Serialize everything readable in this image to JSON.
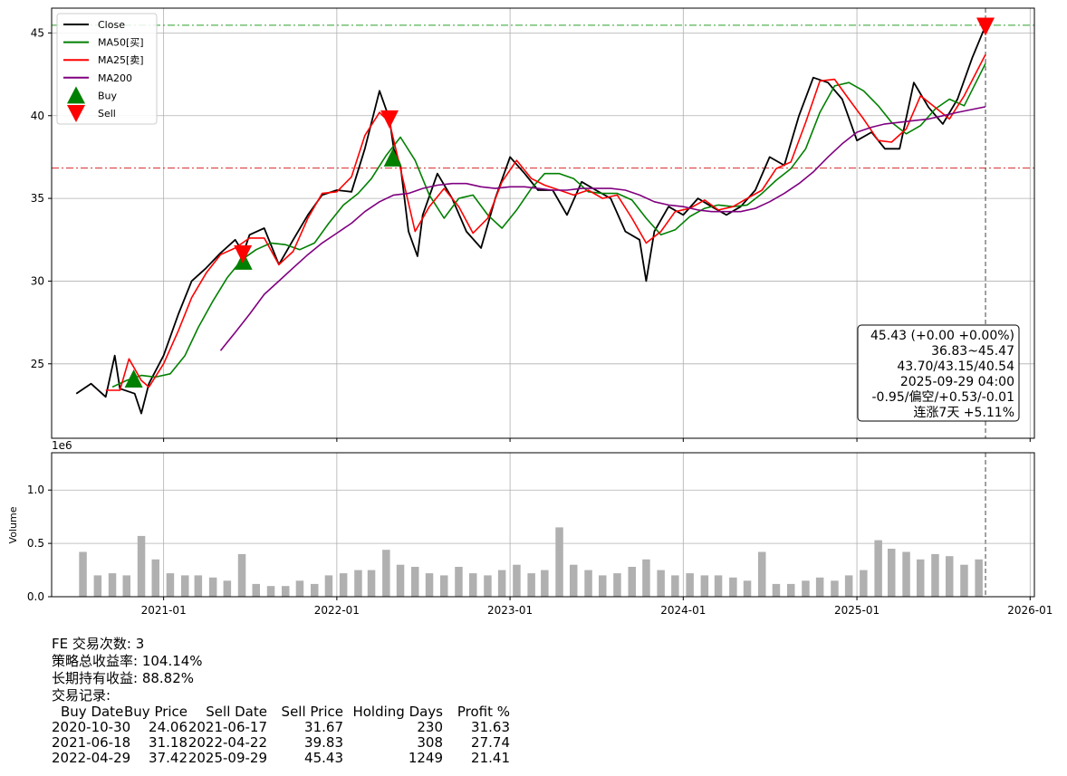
{
  "chart_data": [
    {
      "type": "line",
      "title": "",
      "xlabel": "",
      "ylabel": "",
      "ylim": [
        20.5,
        46.5
      ],
      "yticks": [
        "25",
        "30",
        "35",
        "40",
        "45"
      ],
      "xticks": [
        "2021-01",
        "2022-01",
        "2023-01",
        "2024-01",
        "2025-01",
        "2026-01"
      ],
      "grid": true,
      "legend_position": "top-left",
      "series": [
        {
          "name": "Close",
          "color": "#000000",
          "x": [
            "2020-07-01",
            "2020-08-01",
            "2020-09-01",
            "2020-09-20",
            "2020-10-01",
            "2020-11-01",
            "2020-11-15",
            "2020-12-01",
            "2021-01-01",
            "2021-02-01",
            "2021-03-01",
            "2021-04-01",
            "2021-05-01",
            "2021-06-01",
            "2021-06-18",
            "2021-07-01",
            "2021-08-01",
            "2021-09-01",
            "2021-10-01",
            "2021-11-01",
            "2021-12-01",
            "2022-01-01",
            "2022-02-01",
            "2022-03-01",
            "2022-04-01",
            "2022-04-22",
            "2022-05-01",
            "2022-05-15",
            "2022-06-01",
            "2022-06-20",
            "2022-07-01",
            "2022-08-01",
            "2022-09-01",
            "2022-10-01",
            "2022-11-01",
            "2022-12-01",
            "2023-01-01",
            "2023-02-01",
            "2023-03-01",
            "2023-04-01",
            "2023-05-01",
            "2023-06-01",
            "2023-07-01",
            "2023-08-01",
            "2023-09-01",
            "2023-10-01",
            "2023-10-15",
            "2023-11-01",
            "2023-12-01",
            "2024-01-01",
            "2024-02-01",
            "2024-03-01",
            "2024-04-01",
            "2024-05-01",
            "2024-06-01",
            "2024-07-01",
            "2024-08-01",
            "2024-09-01",
            "2024-10-01",
            "2024-11-01",
            "2024-12-01",
            "2025-01-01",
            "2025-02-01",
            "2025-03-01",
            "2025-04-01",
            "2025-05-01",
            "2025-06-01",
            "2025-07-01",
            "2025-08-01",
            "2025-09-01",
            "2025-09-29"
          ],
          "values": [
            23.2,
            23.8,
            23.0,
            25.5,
            23.5,
            23.2,
            22.0,
            23.8,
            25.5,
            28.0,
            30.0,
            30.8,
            31.7,
            32.5,
            31.7,
            32.8,
            33.2,
            31.0,
            32.5,
            34.0,
            35.2,
            35.5,
            35.4,
            38.0,
            41.5,
            39.8,
            38.0,
            37.0,
            33.0,
            31.5,
            34.0,
            36.5,
            35.0,
            33.0,
            32.0,
            35.0,
            37.5,
            36.5,
            35.5,
            35.5,
            34.0,
            36.0,
            35.5,
            35.0,
            33.0,
            32.5,
            30.0,
            33.0,
            34.5,
            34.0,
            35.0,
            34.5,
            34.0,
            34.5,
            35.5,
            37.5,
            37.0,
            40.0,
            42.3,
            42.0,
            41.0,
            38.5,
            39.0,
            38.0,
            38.0,
            42.0,
            40.5,
            39.5,
            41.0,
            43.5,
            45.43
          ]
        },
        {
          "name": "MA50[买]",
          "color": "#008000",
          "x": [
            "2020-09-15",
            "2020-10-15",
            "2020-11-15",
            "2020-12-15",
            "2021-01-15",
            "2021-02-15",
            "2021-03-15",
            "2021-04-15",
            "2021-05-15",
            "2021-06-15",
            "2021-07-15",
            "2021-08-15",
            "2021-09-15",
            "2021-10-15",
            "2021-11-15",
            "2021-12-15",
            "2022-01-15",
            "2022-02-15",
            "2022-03-15",
            "2022-04-15",
            "2022-05-15",
            "2022-06-15",
            "2022-07-15",
            "2022-08-15",
            "2022-09-15",
            "2022-10-15",
            "2022-11-15",
            "2022-12-15",
            "2023-01-15",
            "2023-02-15",
            "2023-03-15",
            "2023-04-15",
            "2023-05-15",
            "2023-06-15",
            "2023-07-15",
            "2023-08-15",
            "2023-09-15",
            "2023-10-15",
            "2023-11-15",
            "2023-12-15",
            "2024-01-15",
            "2024-02-15",
            "2024-03-15",
            "2024-04-15",
            "2024-05-15",
            "2024-06-15",
            "2024-07-15",
            "2024-08-15",
            "2024-09-15",
            "2024-10-15",
            "2024-11-15",
            "2024-12-15",
            "2025-01-15",
            "2025-02-15",
            "2025-03-15",
            "2025-04-15",
            "2025-05-15",
            "2025-06-15",
            "2025-07-15",
            "2025-08-15",
            "2025-09-29"
          ],
          "values": [
            23.6,
            24.0,
            24.3,
            24.2,
            24.4,
            25.5,
            27.2,
            28.8,
            30.2,
            31.3,
            31.9,
            32.3,
            32.2,
            31.9,
            32.3,
            33.5,
            34.6,
            35.3,
            36.2,
            37.6,
            38.7,
            37.3,
            35.2,
            33.8,
            35.0,
            35.2,
            34.0,
            33.2,
            34.3,
            35.6,
            36.5,
            36.5,
            36.2,
            35.4,
            35.3,
            35.3,
            34.9,
            33.8,
            32.8,
            33.1,
            33.9,
            34.4,
            34.6,
            34.5,
            34.6,
            35.3,
            36.1,
            36.8,
            38.0,
            40.2,
            41.8,
            42.0,
            41.5,
            40.6,
            39.6,
            38.9,
            39.4,
            40.4,
            41.0,
            40.6,
            43.15
          ]
        },
        {
          "name": "MA25[卖]",
          "color": "#ff0000",
          "x": [
            "2020-09-01",
            "2020-10-01",
            "2020-10-20",
            "2020-11-15",
            "2020-12-01",
            "2021-01-01",
            "2021-02-01",
            "2021-03-01",
            "2021-04-01",
            "2021-05-01",
            "2021-06-01",
            "2021-07-01",
            "2021-08-01",
            "2021-09-01",
            "2021-10-01",
            "2021-11-01",
            "2021-12-01",
            "2022-01-01",
            "2022-02-01",
            "2022-03-01",
            "2022-04-01",
            "2022-04-22",
            "2022-05-15",
            "2022-06-15",
            "2022-07-15",
            "2022-08-15",
            "2022-09-15",
            "2022-10-15",
            "2022-11-15",
            "2022-12-15",
            "2023-01-15",
            "2023-02-15",
            "2023-03-15",
            "2023-04-15",
            "2023-05-15",
            "2023-06-15",
            "2023-07-15",
            "2023-08-15",
            "2023-09-15",
            "2023-10-15",
            "2023-11-15",
            "2023-12-15",
            "2024-01-15",
            "2024-02-15",
            "2024-03-15",
            "2024-04-15",
            "2024-05-15",
            "2024-06-15",
            "2024-07-15",
            "2024-08-15",
            "2024-09-15",
            "2024-10-15",
            "2024-11-15",
            "2024-12-15",
            "2025-01-15",
            "2025-02-15",
            "2025-03-15",
            "2025-04-15",
            "2025-05-15",
            "2025-06-15",
            "2025-07-15",
            "2025-08-15",
            "2025-09-29"
          ],
          "values": [
            23.4,
            23.4,
            25.3,
            24.0,
            23.6,
            25.0,
            27.0,
            29.0,
            30.5,
            31.6,
            32.0,
            32.6,
            32.6,
            31.0,
            31.8,
            33.8,
            35.3,
            35.4,
            36.3,
            38.8,
            40.2,
            39.6,
            36.8,
            33.0,
            34.5,
            35.6,
            34.5,
            32.9,
            33.8,
            36.0,
            37.3,
            36.2,
            35.8,
            35.5,
            35.2,
            35.5,
            35.0,
            35.2,
            33.8,
            32.3,
            33.0,
            34.2,
            34.4,
            34.9,
            34.3,
            34.5,
            35.0,
            35.5,
            36.8,
            37.2,
            39.6,
            42.1,
            42.2,
            41.0,
            39.8,
            38.5,
            38.4,
            39.2,
            41.2,
            40.5,
            39.8,
            41.2,
            43.7
          ]
        },
        {
          "name": "MA200",
          "color": "#800080",
          "x": [
            "2021-05-01",
            "2021-06-01",
            "2021-07-01",
            "2021-08-01",
            "2021-09-01",
            "2021-10-01",
            "2021-11-01",
            "2021-12-01",
            "2022-01-01",
            "2022-02-01",
            "2022-03-01",
            "2022-04-01",
            "2022-05-01",
            "2022-06-01",
            "2022-07-01",
            "2022-08-01",
            "2022-09-01",
            "2022-10-01",
            "2022-11-01",
            "2022-12-01",
            "2023-01-01",
            "2023-02-01",
            "2023-03-01",
            "2023-04-01",
            "2023-05-01",
            "2023-06-01",
            "2023-07-01",
            "2023-08-01",
            "2023-09-01",
            "2023-10-01",
            "2023-11-01",
            "2023-12-01",
            "2024-01-01",
            "2024-02-01",
            "2024-03-01",
            "2024-04-01",
            "2024-05-01",
            "2024-06-01",
            "2024-07-01",
            "2024-08-01",
            "2024-09-01",
            "2024-10-01",
            "2024-11-01",
            "2024-12-01",
            "2025-01-01",
            "2025-02-01",
            "2025-03-01",
            "2025-04-01",
            "2025-05-01",
            "2025-06-01",
            "2025-07-01",
            "2025-08-01",
            "2025-09-29"
          ],
          "values": [
            25.8,
            26.9,
            28.0,
            29.2,
            30.0,
            30.8,
            31.6,
            32.3,
            32.9,
            33.5,
            34.2,
            34.8,
            35.2,
            35.3,
            35.6,
            35.8,
            35.9,
            35.9,
            35.7,
            35.6,
            35.7,
            35.7,
            35.6,
            35.5,
            35.5,
            35.6,
            35.6,
            35.6,
            35.5,
            35.2,
            34.8,
            34.6,
            34.5,
            34.3,
            34.2,
            34.2,
            34.2,
            34.4,
            34.8,
            35.3,
            35.9,
            36.6,
            37.5,
            38.3,
            39.0,
            39.3,
            39.5,
            39.6,
            39.7,
            39.8,
            40.0,
            40.2,
            40.54
          ]
        }
      ],
      "markers": {
        "buy": {
          "name": "Buy",
          "color": "#008000",
          "x": [
            "2020-10-30",
            "2021-06-18",
            "2022-04-29"
          ],
          "values": [
            24.06,
            31.18,
            37.42
          ]
        },
        "sell": {
          "name": "Sell",
          "color": "#ff0000",
          "x": [
            "2021-06-17",
            "2022-04-22",
            "2025-09-29"
          ],
          "values": [
            31.67,
            39.83,
            45.43
          ]
        }
      },
      "reference_lines": [
        {
          "type": "hline",
          "value": 45.47,
          "color": "#2ca02c",
          "style": "dash-dot"
        },
        {
          "type": "hline",
          "value": 36.83,
          "color": "#d62728",
          "style": "dash-dot"
        },
        {
          "type": "vline",
          "x": "2025-09-29",
          "color": "#444444",
          "style": "dashed"
        }
      ],
      "info_box": {
        "position": "bottom-right",
        "lines": [
          "45.43 (+0.00 +0.00%)",
          "36.83~45.47",
          "43.70/43.15/40.54",
          "2025-09-29 04:00",
          "-0.95/偏空/+0.53/-0.01",
          "连涨7天 +5.11%"
        ]
      }
    },
    {
      "type": "bar",
      "ylabel": "Volume",
      "scale_label": "1e6",
      "ylim": [
        0,
        1.35
      ],
      "yticks": [
        "0.0",
        "0.5",
        "1.0"
      ],
      "grid": true,
      "color": "#b0b0b0",
      "x": [
        "2020-07",
        "2020-08",
        "2020-09",
        "2020-10",
        "2020-11",
        "2020-12",
        "2021-01",
        "2021-02",
        "2021-03",
        "2021-04",
        "2021-05",
        "2021-06",
        "2021-07",
        "2021-08",
        "2021-09",
        "2021-10",
        "2021-11",
        "2021-12",
        "2022-01",
        "2022-02",
        "2022-03",
        "2022-04",
        "2022-05",
        "2022-06",
        "2022-07",
        "2022-08",
        "2022-09",
        "2022-10",
        "2022-11",
        "2022-12",
        "2023-01",
        "2023-02",
        "2023-03",
        "2023-04",
        "2023-05",
        "2023-06",
        "2023-07",
        "2023-08",
        "2023-09",
        "2023-10",
        "2023-11",
        "2023-12",
        "2024-01",
        "2024-02",
        "2024-03",
        "2024-04",
        "2024-05",
        "2024-06",
        "2024-07",
        "2024-08",
        "2024-09",
        "2024-10",
        "2024-11",
        "2024-12",
        "2025-01",
        "2025-02",
        "2025-03",
        "2025-04",
        "2025-05",
        "2025-06",
        "2025-07",
        "2025-08",
        "2025-09"
      ],
      "values": [
        0.42,
        0.2,
        0.22,
        0.2,
        0.57,
        0.35,
        0.22,
        0.2,
        0.2,
        0.18,
        0.15,
        0.4,
        0.12,
        0.1,
        0.1,
        0.15,
        0.12,
        0.2,
        0.22,
        0.25,
        0.25,
        0.44,
        0.3,
        0.28,
        0.22,
        0.2,
        0.28,
        0.22,
        0.2,
        0.25,
        0.3,
        0.22,
        0.25,
        0.65,
        0.3,
        0.25,
        0.2,
        0.22,
        0.28,
        0.35,
        0.25,
        0.2,
        0.22,
        0.2,
        0.2,
        0.18,
        0.15,
        0.42,
        0.12,
        0.12,
        0.15,
        0.18,
        0.15,
        0.2,
        0.25,
        0.53,
        0.45,
        0.42,
        0.35,
        0.4,
        0.38,
        0.3,
        0.35
      ]
    }
  ],
  "summary": {
    "trades_count": "FE 交易次数: 3",
    "strategy_return": "策略总收益率: 104.14%",
    "buy_hold_return": "长期持有收益: 88.82%",
    "records_label": "交易记录:",
    "columns": [
      "Buy Date",
      "Buy Price",
      "Sell Date",
      "Sell Price",
      "Holding Days",
      "Profit %"
    ],
    "rows": [
      [
        "2020-10-30",
        "24.06",
        "2021-06-17",
        "31.67",
        "230",
        "31.63"
      ],
      [
        "2021-06-18",
        "31.18",
        "2022-04-22",
        "39.83",
        "308",
        "27.74"
      ],
      [
        "2022-04-29",
        "37.42",
        "2025-09-29",
        "45.43",
        "1249",
        "21.41"
      ]
    ]
  }
}
